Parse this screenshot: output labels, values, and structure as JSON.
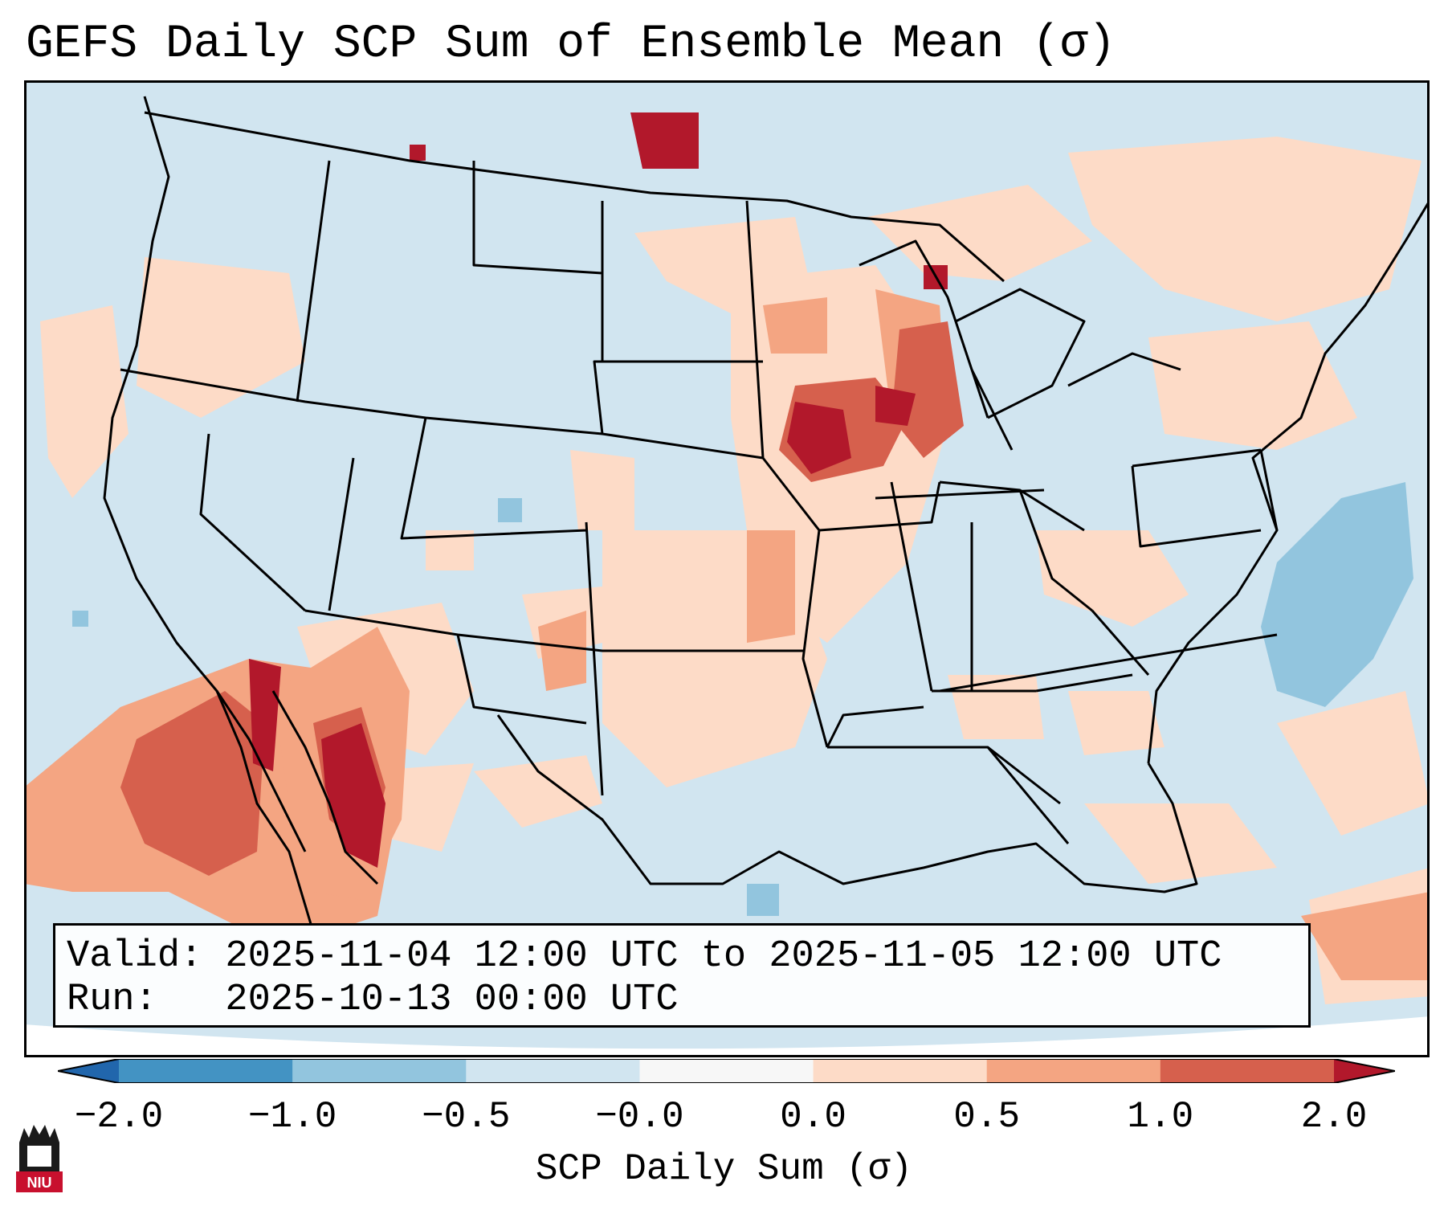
{
  "title": "GEFS Daily SCP Sum of Ensemble Mean (σ)",
  "info": {
    "valid": "Valid: 2025-11-04 12:00 UTC to 2025-11-05 12:00 UTC",
    "run": "Run:   2025-10-13 00:00 UTC"
  },
  "colorbar": {
    "label": "SCP Daily Sum (σ)",
    "tick_labels": [
      "−2.0",
      "−1.0",
      "−0.5",
      "−0.0",
      "0.0",
      "0.5",
      "1.0",
      "2.0"
    ],
    "bins": [
      {
        "range": [
          -2.0,
          -1.0
        ],
        "color": "#4393c3"
      },
      {
        "range": [
          -1.0,
          -0.5
        ],
        "color": "#92c5de"
      },
      {
        "range": [
          -0.5,
          -0.0
        ],
        "color": "#d1e5f0"
      },
      {
        "range": [
          -0.0,
          0.0
        ],
        "color": "#f7f7f7"
      },
      {
        "range": [
          0.0,
          0.5
        ],
        "color": "#fddbc7"
      },
      {
        "range": [
          0.5,
          1.0
        ],
        "color": "#f4a582"
      },
      {
        "range": [
          1.0,
          2.0
        ],
        "color": "#d6604d"
      }
    ],
    "under_color": "#2166ac",
    "over_color": "#b2182b"
  },
  "map": {
    "background_color": "#d1e5f0",
    "anomaly_regions": [
      {
        "area": "Baja California and Gulf of California",
        "color": "#b2182b"
      },
      {
        "area": "Eastern Pacific southwest of Baja",
        "color": "#d6604d"
      },
      {
        "area": "Iowa and southern Minnesota",
        "color": "#b2182b"
      },
      {
        "area": "Wisconsin and Michigan",
        "color": "#d6604d"
      },
      {
        "area": "North Dakota north border",
        "color": "#b2182b"
      },
      {
        "area": "Missouri and Kansas corridor",
        "color": "#f4a582"
      },
      {
        "area": "Western Atlantic",
        "color": "#92c5de"
      },
      {
        "area": "Caribbean east of Bahamas",
        "color": "#f4a582"
      }
    ]
  },
  "logo": {
    "text": "NIU",
    "color": "#c8102e"
  }
}
